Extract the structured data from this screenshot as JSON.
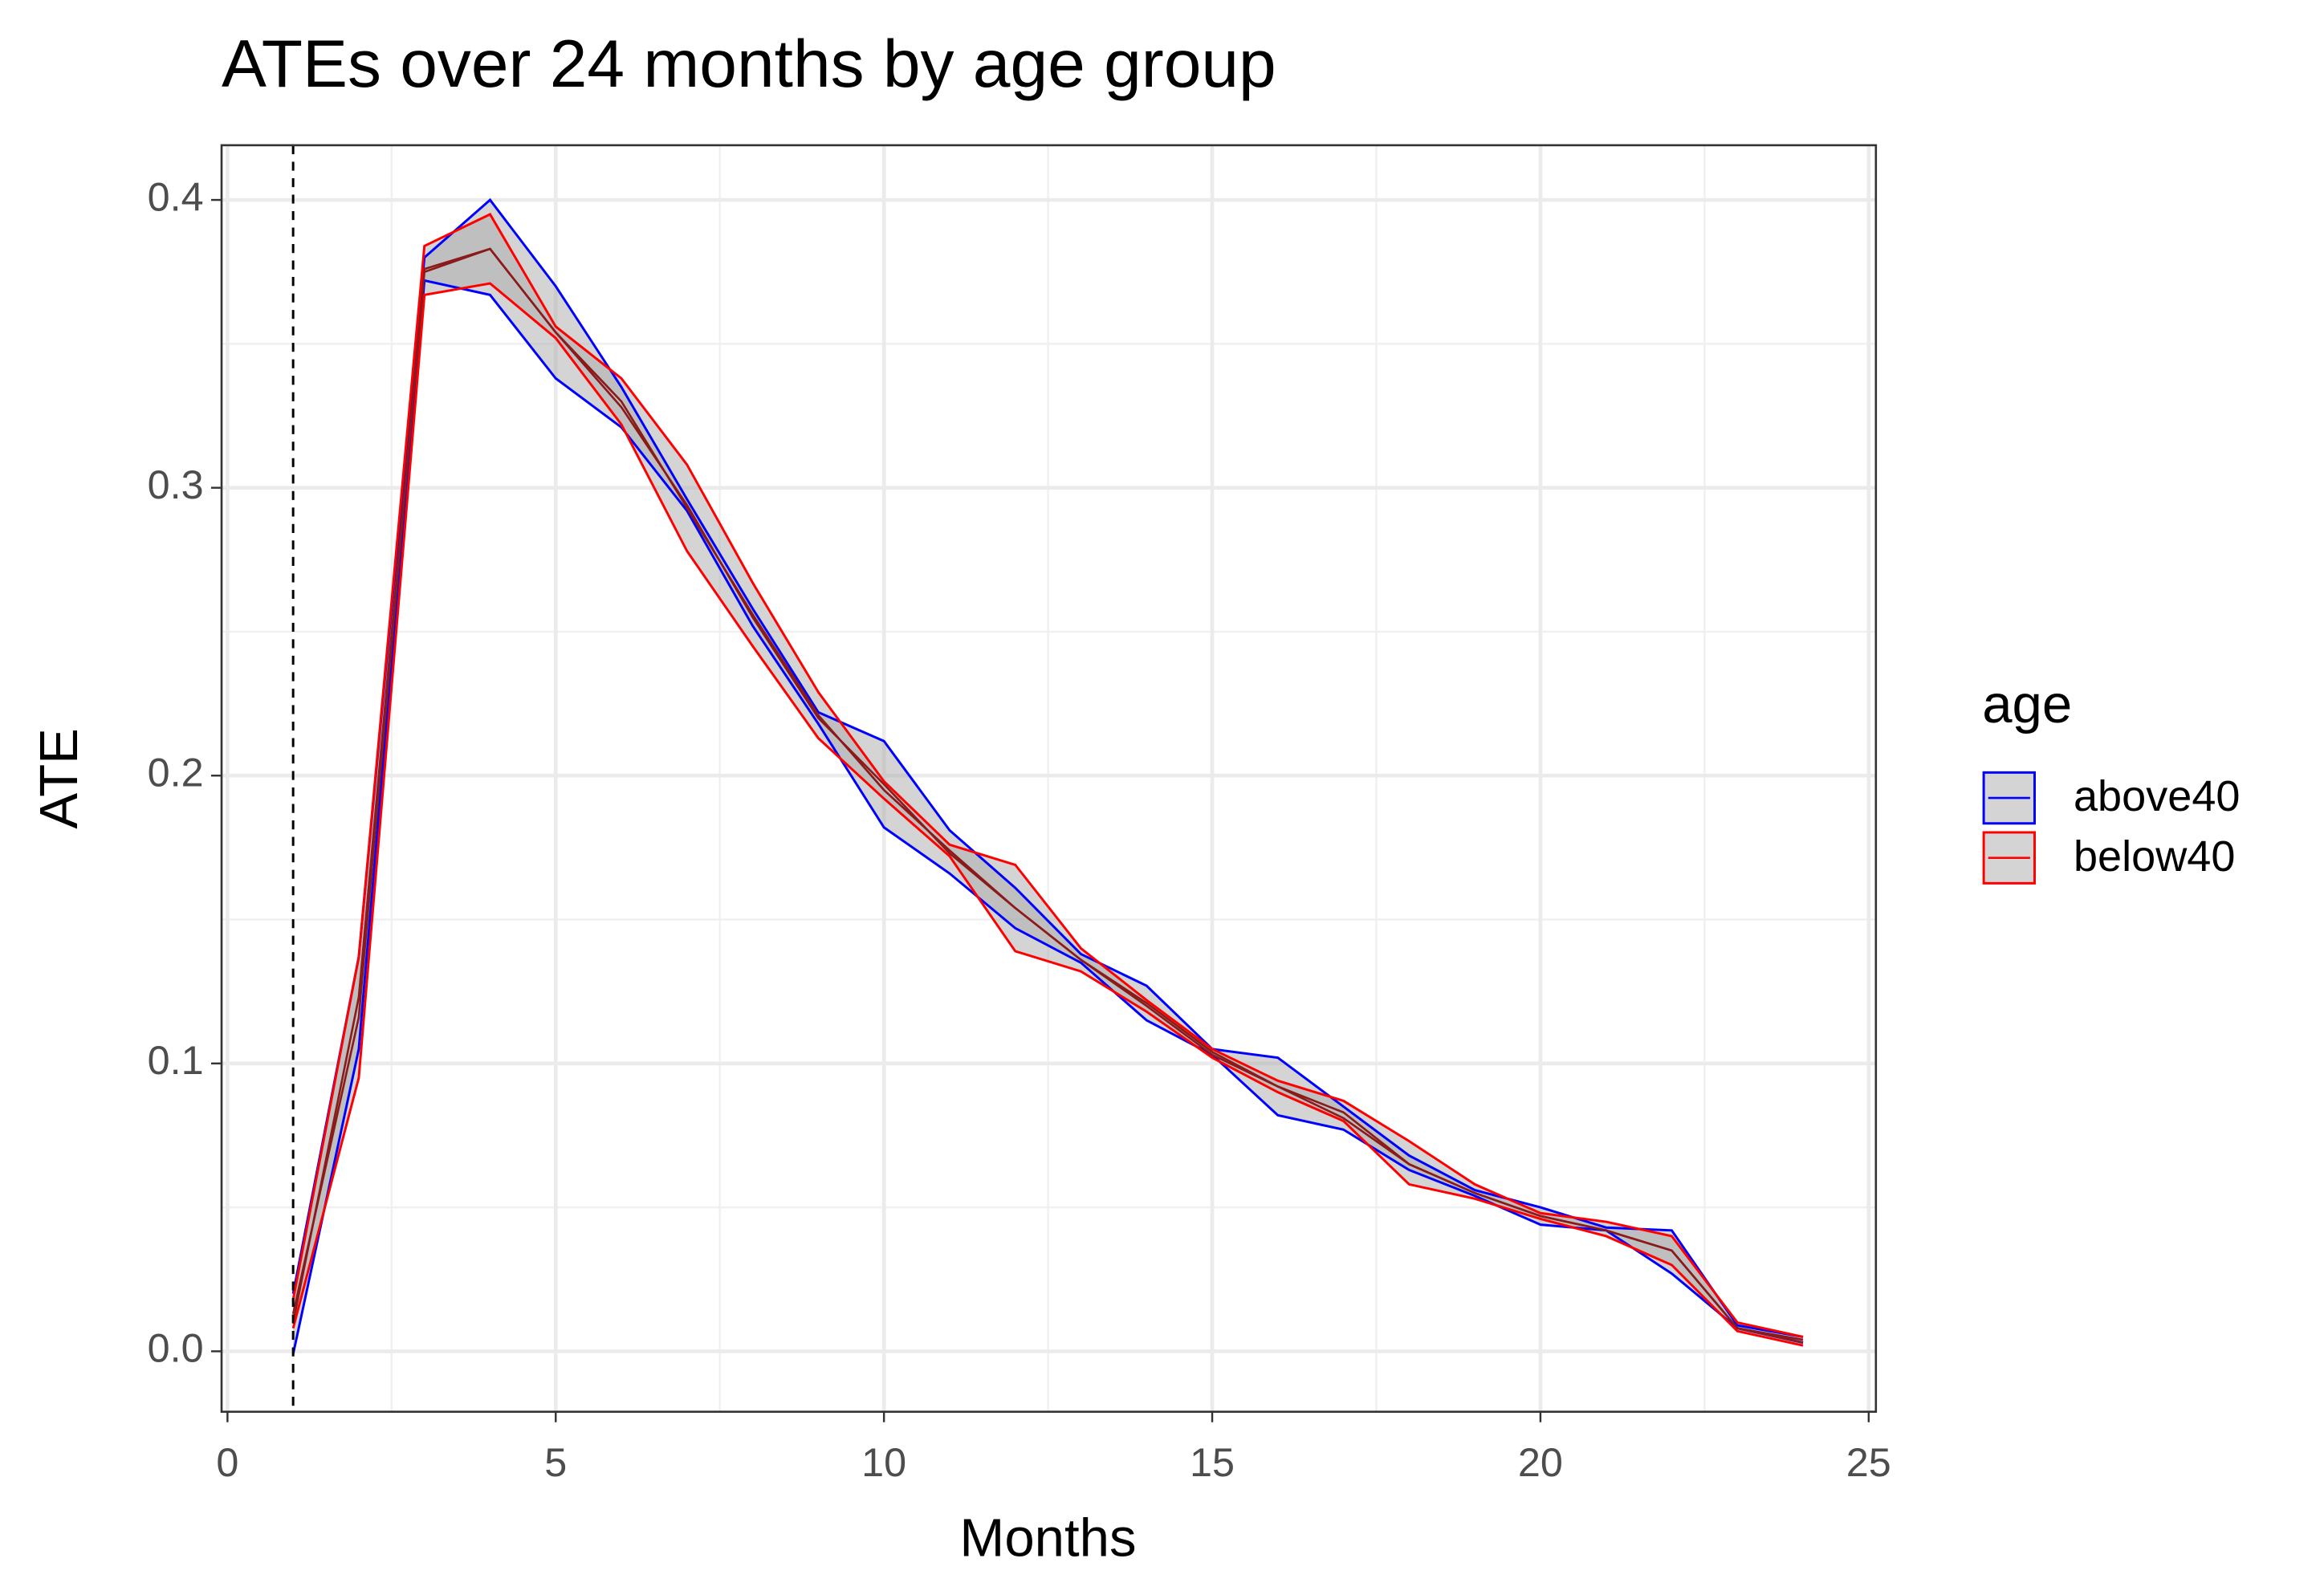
{
  "chart_data": {
    "type": "ribbon",
    "title": "ATEs over 24 months by age group",
    "x_label": "Months",
    "y_label": "ATE",
    "legend_title": "age",
    "legend_position": "right",
    "x": [
      1,
      2,
      3,
      4,
      5,
      6,
      7,
      8,
      9,
      10,
      11,
      12,
      13,
      14,
      15,
      16,
      17,
      18,
      19,
      20,
      21,
      22,
      23,
      24
    ],
    "series": [
      {
        "name": "above40",
        "color": "#0000ff",
        "values": [
          0.01,
          0.123,
          0.376,
          0.383,
          0.354,
          0.328,
          0.294,
          0.255,
          0.22,
          0.197,
          0.173,
          0.154,
          0.136,
          0.121,
          0.104,
          0.092,
          0.081,
          0.065,
          0.055,
          0.047,
          0.042,
          0.035,
          0.008,
          0.004
        ],
        "lower": [
          -0.001,
          0.105,
          0.372,
          0.367,
          0.338,
          0.321,
          0.292,
          0.252,
          0.218,
          0.182,
          0.166,
          0.147,
          0.135,
          0.115,
          0.103,
          0.082,
          0.077,
          0.063,
          0.054,
          0.044,
          0.042,
          0.027,
          0.008,
          0.003
        ],
        "upper": [
          0.02,
          0.137,
          0.38,
          0.4,
          0.37,
          0.335,
          0.296,
          0.258,
          0.222,
          0.212,
          0.181,
          0.161,
          0.138,
          0.127,
          0.105,
          0.102,
          0.085,
          0.068,
          0.056,
          0.05,
          0.043,
          0.042,
          0.009,
          0.005
        ]
      },
      {
        "name": "below40",
        "color": "#ff0000",
        "values": [
          0.013,
          0.116,
          0.375,
          0.383,
          0.354,
          0.33,
          0.293,
          0.256,
          0.221,
          0.195,
          0.174,
          0.154,
          0.136,
          0.12,
          0.103,
          0.092,
          0.083,
          0.065,
          0.055,
          0.047,
          0.042,
          0.035,
          0.008,
          0.003
        ],
        "lower": [
          0.008,
          0.095,
          0.367,
          0.371,
          0.352,
          0.322,
          0.278,
          0.245,
          0.213,
          0.192,
          0.172,
          0.139,
          0.132,
          0.118,
          0.102,
          0.09,
          0.08,
          0.058,
          0.053,
          0.046,
          0.04,
          0.03,
          0.007,
          0.002
        ],
        "upper": [
          0.018,
          0.137,
          0.384,
          0.395,
          0.356,
          0.338,
          0.308,
          0.267,
          0.229,
          0.198,
          0.176,
          0.169,
          0.14,
          0.122,
          0.105,
          0.094,
          0.087,
          0.073,
          0.058,
          0.048,
          0.045,
          0.04,
          0.01,
          0.005
        ]
      }
    ],
    "mid_color": "#8b1a1a",
    "ribbon_fill": "#a9a9a9",
    "vline": 1,
    "xlim": [
      -0.09,
      25.11
    ],
    "xticks": [
      0,
      5,
      10,
      15,
      20,
      25
    ],
    "x_minor_ticks": [
      2.5,
      7.5,
      12.5,
      17.5,
      22.5
    ],
    "ylim": [
      -0.021,
      0.419
    ],
    "yticks": [
      {
        "value": 0,
        "label": "0.0"
      },
      0.1,
      0.2,
      0.3,
      0.4
    ],
    "y_minor_ticks": [
      0.05,
      0.15,
      0.25,
      0.35
    ],
    "grid": true
  }
}
